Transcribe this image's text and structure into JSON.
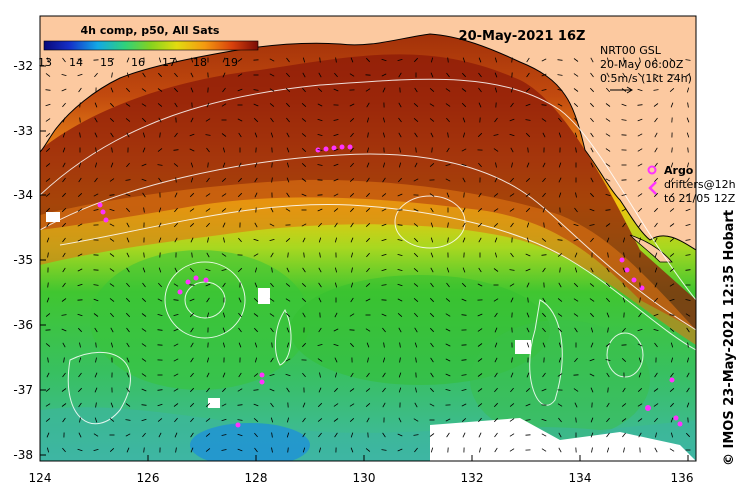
{
  "title": "20-May-2021 16Z",
  "colorbar": {
    "title": "4h comp, p50, All Sats",
    "ticks": [
      "13",
      "14",
      "15",
      "16",
      "17",
      "18",
      "19"
    ]
  },
  "info": {
    "line1": "NRT00 GSL",
    "line2": "20-May 06:00Z",
    "line3": "0.5m/s (1kt 24h)"
  },
  "argo_label": "Argo",
  "drifters_line1": "drifters@12h",
  "drifters_line2": "to 21/05 12Z",
  "credit": "© IMOS 23-May-2021 12:35 Hobart",
  "axes": {
    "lon_ticks": [
      "124",
      "126",
      "128",
      "130",
      "132",
      "134",
      "136"
    ],
    "lat_ticks": [
      "-32",
      "-33",
      "-34",
      "-35",
      "-36",
      "-37",
      "-38"
    ]
  },
  "colors": {
    "land": "#fcc9a0",
    "warm": "#8c1a08",
    "mid": "#f09018",
    "cool": "#2ec43a",
    "marker": "#ff33ff"
  }
}
